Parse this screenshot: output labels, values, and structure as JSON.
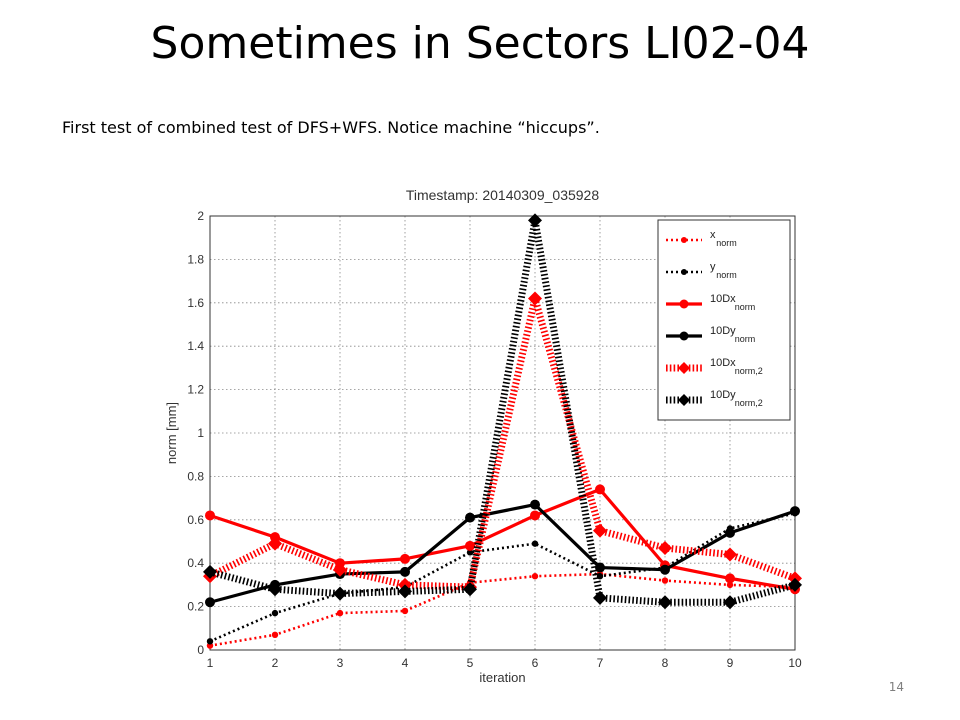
{
  "slide": {
    "title": "Sometimes in Sectors LI02-04",
    "subtitle": "First test of combined test of DFS+WFS. Notice machine “hiccups”.",
    "page_number": "14"
  },
  "chart_data": {
    "type": "line",
    "title": "Timestamp: 20140309_035928",
    "xlabel": "iteration",
    "ylabel": "norm [mm]",
    "x": [
      1,
      2,
      3,
      4,
      5,
      6,
      7,
      8,
      9,
      10
    ],
    "xlim": [
      1,
      10
    ],
    "ylim": [
      0,
      2
    ],
    "xticks": [
      "1",
      "2",
      "3",
      "4",
      "5",
      "6",
      "7",
      "8",
      "9",
      "10"
    ],
    "yticks": [
      "0",
      "0.2",
      "0.4",
      "0.6",
      "0.8",
      "1",
      "1.2",
      "1.4",
      "1.6",
      "1.8",
      "2"
    ],
    "grid": true,
    "legend_position": "top-right",
    "series": [
      {
        "name": "x",
        "sub": "norm",
        "color": "#ff0000",
        "style": "dotted",
        "marker": "dot",
        "values": [
          0.02,
          0.07,
          0.17,
          0.18,
          0.31,
          0.34,
          0.35,
          0.32,
          0.3,
          0.29
        ]
      },
      {
        "name": "y",
        "sub": "norm",
        "color": "#000000",
        "style": "dotted",
        "marker": "dot",
        "values": [
          0.04,
          0.17,
          0.26,
          0.29,
          0.45,
          0.49,
          0.34,
          0.38,
          0.56,
          0.63
        ]
      },
      {
        "name": "10Dx",
        "sub": "norm",
        "color": "#ff0000",
        "style": "solid",
        "marker": "dot",
        "values": [
          0.62,
          0.52,
          0.4,
          0.42,
          0.48,
          0.62,
          0.74,
          0.39,
          0.33,
          0.28
        ]
      },
      {
        "name": "10Dy",
        "sub": "norm",
        "color": "#000000",
        "style": "solid",
        "marker": "dot",
        "values": [
          0.22,
          0.3,
          0.35,
          0.36,
          0.61,
          0.67,
          0.38,
          0.37,
          0.54,
          0.64
        ]
      },
      {
        "name": "10Dx",
        "sub": "norm,2",
        "color": "#ff0000",
        "style": "thickdotted",
        "marker": "diamond",
        "values": [
          0.34,
          0.49,
          0.37,
          0.3,
          0.29,
          1.62,
          0.55,
          0.47,
          0.44,
          0.33
        ]
      },
      {
        "name": "10Dy",
        "sub": "norm,2",
        "color": "#000000",
        "style": "thickdotted",
        "marker": "diamond",
        "values": [
          0.36,
          0.28,
          0.26,
          0.27,
          0.28,
          1.98,
          0.24,
          0.22,
          0.22,
          0.3
        ]
      }
    ]
  }
}
